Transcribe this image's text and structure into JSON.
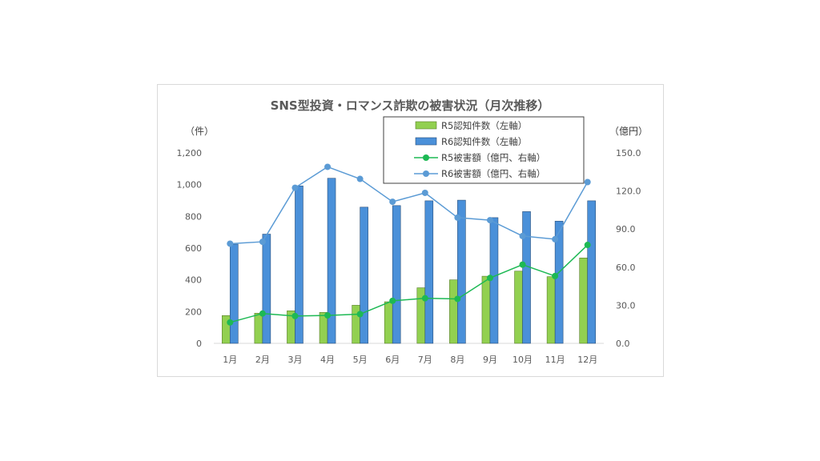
{
  "chart_data": {
    "type": "bar",
    "title": "SNS型投資・ロマンス詐欺の被害状況（月次推移）",
    "left_axis_label": "（件）",
    "right_axis_label": "（億円）",
    "categories": [
      "1月",
      "2月",
      "3月",
      "4月",
      "5月",
      "6月",
      "7月",
      "8月",
      "9月",
      "10月",
      "11月",
      "12月"
    ],
    "ylim_left": [
      0,
      1200
    ],
    "ylim_right": [
      0,
      150
    ],
    "left_ticks": [
      "0",
      "200",
      "400",
      "600",
      "800",
      "1,000",
      "1,200"
    ],
    "right_ticks": [
      "0.0",
      "30.0",
      "60.0",
      "90.0",
      "120.0",
      "150.0"
    ],
    "grid": false,
    "legend_position": "top-right",
    "series": [
      {
        "name": "R5認知件数（左軸）",
        "kind": "bar",
        "axis": "left",
        "color": "#92d050",
        "values": [
          175,
          190,
          205,
          195,
          240,
          262,
          350,
          400,
          423,
          455,
          420,
          538
        ]
      },
      {
        "name": "R6認知件数（左軸）",
        "kind": "bar",
        "axis": "left",
        "color": "#4a90d9",
        "values": [
          625,
          688,
          992,
          1040,
          858,
          868,
          898,
          902,
          792,
          830,
          770,
          898
        ]
      },
      {
        "name": "R5被害額（億円、右軸）",
        "kind": "line",
        "axis": "right",
        "color": "#1db954",
        "values": [
          16.5,
          23.5,
          21.5,
          22.0,
          23.0,
          33.5,
          35.5,
          35.0,
          51.5,
          62.0,
          53.0,
          77.5
        ]
      },
      {
        "name": "R6被害額（億円、右軸）",
        "kind": "line",
        "axis": "right",
        "color": "#5b9bd5",
        "values": [
          78.5,
          80.0,
          122.5,
          139.0,
          129.5,
          111.5,
          118.5,
          99.0,
          97.0,
          84.5,
          82.0,
          127.0
        ]
      }
    ]
  }
}
